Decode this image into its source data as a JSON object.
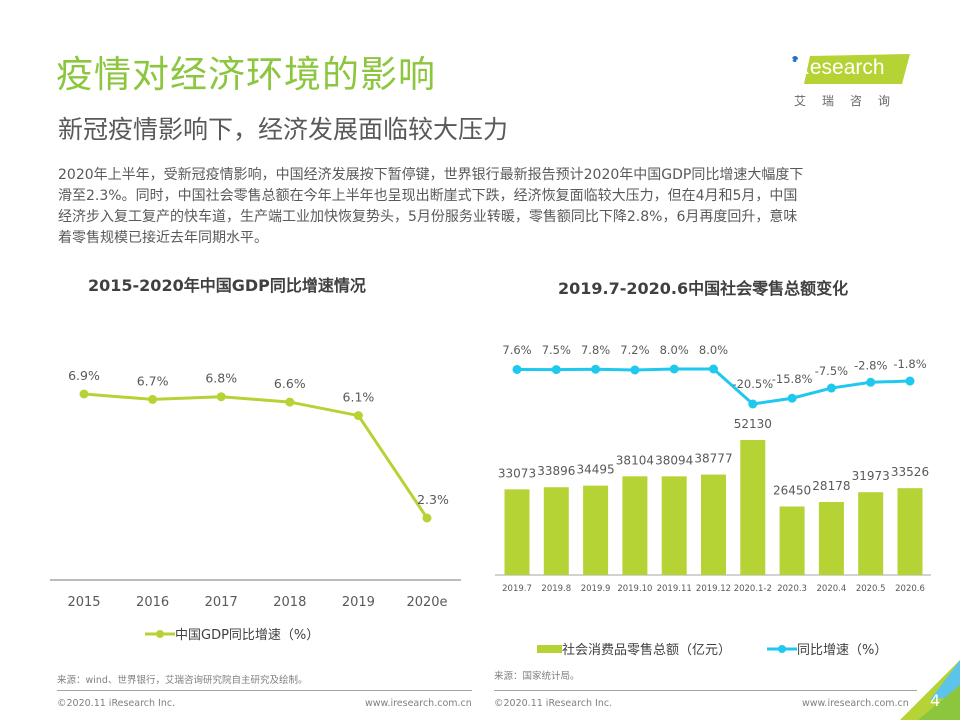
{
  "header": {
    "title": "疫情对经济环境的影响",
    "subtitle": "新冠疫情影响下，经济发展面临较大压力",
    "body_lines": [
      "2020年上半年，受新冠疫情影响，中国经济发展按下暂停键，世界银行最新报告预计2020年中国GDP同比增速大幅度下",
      "滑至2.3%。同时，中国社会零售总额在今年上半年也呈现出断崖式下跌，经济恢复面临较大压力，但在4月和5月，中国",
      "经济步入复工复产的快车道，生产端工业加快恢复势头，5月份服务业转暖，零售额同比下降2.8%，6月再度回升，意味",
      "着零售规模已接近去年同期水平。"
    ]
  },
  "logo": {
    "text": "iResearch",
    "cn": "艾瑞咨询"
  },
  "colors": {
    "green": "#b5d334",
    "title_green": "#8cc63f",
    "blue": "#1ec8ef",
    "bar": "#b5d334"
  },
  "chart_data": [
    {
      "type": "line",
      "title": "2015-2020年中国GDP同比增速情况",
      "categories": [
        "2015",
        "2016",
        "2017",
        "2018",
        "2019",
        "2020e"
      ],
      "series": [
        {
          "name": "中国GDP同比增速（%）",
          "values": [
            6.9,
            6.7,
            6.8,
            6.6,
            6.1,
            2.3
          ]
        }
      ],
      "data_labels": [
        "6.9%",
        "6.7%",
        "6.8%",
        "6.6%",
        "6.1%",
        "2.3%"
      ],
      "xlabel": "",
      "ylabel": "",
      "ylim": [
        0,
        10
      ],
      "grid": false,
      "legend": "bottom"
    },
    {
      "type": "bar",
      "title": "2019.7-2020.6中国社会零售总额变化",
      "categories": [
        "2019.7",
        "2019.8",
        "2019.9",
        "2019.10",
        "2019.11",
        "2019.12",
        "2020.1-2",
        "2020.3",
        "2020.4",
        "2020.5",
        "2020.6"
      ],
      "series": [
        {
          "name": "社会消费品零售总额（亿元）",
          "type": "bar",
          "values": [
            33073,
            33896,
            34495,
            38104,
            38094,
            38777,
            52130,
            26450,
            28178,
            31973,
            33526
          ]
        },
        {
          "name": "同比增速（%）",
          "type": "line",
          "values": [
            7.6,
            7.5,
            7.8,
            7.2,
            8.0,
            8.0,
            -20.5,
            -15.8,
            -7.5,
            -2.8,
            -1.8
          ],
          "labels": [
            "7.6%",
            "7.5%",
            "7.8%",
            "7.2%",
            "8.0%",
            "8.0%",
            "-20.5%",
            "-15.8%",
            "-7.5%",
            "-2.8%",
            "-1.8%"
          ]
        }
      ],
      "xlabel": "",
      "ylabel": "",
      "ylim": [
        0,
        60000
      ],
      "y2lim": [
        -40,
        10
      ],
      "grid": false,
      "legend": "bottom"
    }
  ],
  "sources": {
    "left": "来源：wind、世界银行，艾瑞咨询研究院自主研究及绘制。",
    "right": "来源：国家统计局。"
  },
  "footer": {
    "copyright": "©2020.11 iResearch Inc.",
    "url": "www.iresearch.com.cn",
    "page": "4"
  }
}
